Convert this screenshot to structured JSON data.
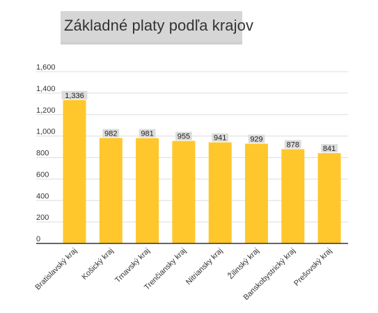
{
  "title": "Základné platy podľa krajov",
  "colors": {
    "bar": "#FFC72C",
    "grid": "#dddddd",
    "axis": "#333333",
    "label_bg": "#dcdcdc"
  },
  "chart_data": {
    "type": "bar",
    "title": "Základné platy podľa krajov",
    "categories": [
      "Bratislavský kraj",
      "Košický kraj",
      "Trnavský kraj",
      "Trenčiansky kraj",
      "Nitriansky kraj",
      "Žilinský kraj",
      "Banskobystrický kraj",
      "Prešovský kraj"
    ],
    "values": [
      1336,
      982,
      981,
      955,
      941,
      929,
      878,
      841
    ],
    "value_labels": [
      "1,336",
      "982",
      "981",
      "955",
      "941",
      "929",
      "878",
      "841"
    ],
    "ylim": [
      0,
      1600
    ],
    "yticks": [
      0,
      200,
      400,
      600,
      800,
      1000,
      1200,
      1400,
      1600
    ],
    "ytick_labels": [
      "0",
      "200",
      "400",
      "600",
      "800",
      "1,000",
      "1,200",
      "1,400",
      "1,600"
    ],
    "grid": true,
    "legend": "none",
    "xlabel": "",
    "ylabel": ""
  }
}
